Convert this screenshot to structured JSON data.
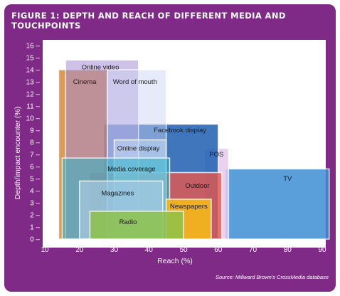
{
  "figure": {
    "title_line1": "FIGURE 1: DEPTH AND REACH OF DIFFERENT MEDIA AND",
    "title_line2": "TOUCHPOINTS",
    "source": "Source: Millward Brown's CrossMedia database"
  },
  "colors": {
    "panel_background": "#7f2a86",
    "plot_background": "#ffffff",
    "text": "#ffffff"
  },
  "chart_data": {
    "type": "area",
    "xlabel": "Reach (%)",
    "ylabel": "Depth/impact encounter (%)",
    "xlim": [
      10,
      95
    ],
    "ylim": [
      0,
      16.5
    ],
    "xticks": [
      10,
      20,
      30,
      40,
      50,
      60,
      70,
      80,
      90
    ],
    "yticks": [
      0,
      1,
      2,
      3,
      4,
      5,
      6,
      7,
      8,
      9,
      10,
      11,
      12,
      13,
      14,
      15,
      16
    ],
    "grid": false,
    "legend": "none",
    "series": [
      {
        "name": "TV",
        "x0": 62,
        "x1": 92,
        "y0": 0,
        "y1": 5.8,
        "color": "#3d8dd4",
        "opacity": 0.85,
        "label_x": 80,
        "label_y": 5.0
      },
      {
        "name": "POS",
        "x0": 56,
        "x1": 63,
        "y0": 0,
        "y1": 7.5,
        "color": "#e6c9ec",
        "opacity": 0.85,
        "label_x": 59.5,
        "label_y": 7.0
      },
      {
        "name": "Facebook display",
        "x0": 27,
        "x1": 60,
        "y0": 0,
        "y1": 9.5,
        "color": "#1f5fb0",
        "opacity": 0.85,
        "label_x": 49,
        "label_y": 9.0
      },
      {
        "name": "Outdoor",
        "x0": 23,
        "x1": 61,
        "y0": 0,
        "y1": 5.5,
        "color": "#e4584f",
        "opacity": 0.8,
        "label_x": 54,
        "label_y": 4.4
      },
      {
        "name": "Cinema",
        "x0": 14,
        "x1": 28,
        "y0": 0,
        "y1": 14,
        "color": "#d07a22",
        "opacity": 0.75,
        "label_x": 21.5,
        "label_y": 13.0
      },
      {
        "name": "Online video",
        "x0": 16,
        "x1": 37,
        "y0": 0,
        "y1": 14.8,
        "color": "#9f86d6",
        "opacity": 0.5,
        "label_x": 26,
        "label_y": 14.2
      },
      {
        "name": "Word of mouth",
        "x0": 28,
        "x1": 45,
        "y0": 0,
        "y1": 14,
        "color": "#c9d2f2",
        "opacity": 0.45,
        "label_x": 36,
        "label_y": 13.0
      },
      {
        "name": "Online display",
        "x0": 30,
        "x1": 45,
        "y0": 0,
        "y1": 8.2,
        "color": "#c9dcf6",
        "opacity": 0.55,
        "label_x": 37,
        "label_y": 7.5
      },
      {
        "name": "Media coverage",
        "x0": 15,
        "x1": 46,
        "y0": 0,
        "y1": 6.7,
        "color": "#2eb6c8",
        "opacity": 0.55,
        "label_x": 35,
        "label_y": 5.8
      },
      {
        "name": "Magazines",
        "x0": 20,
        "x1": 44,
        "y0": 0,
        "y1": 4.8,
        "color": "#aacde5",
        "opacity": 0.65,
        "label_x": 31,
        "label_y": 3.8
      },
      {
        "name": "Newspapers",
        "x0": 45,
        "x1": 58,
        "y0": 0,
        "y1": 3.3,
        "color": "#f4b81a",
        "opacity": 0.9,
        "label_x": 51.5,
        "label_y": 2.7
      },
      {
        "name": "Radio",
        "x0": 23,
        "x1": 50,
        "y0": 0,
        "y1": 2.3,
        "color": "#8dc24a",
        "opacity": 0.85,
        "label_x": 34,
        "label_y": 1.4
      }
    ]
  }
}
